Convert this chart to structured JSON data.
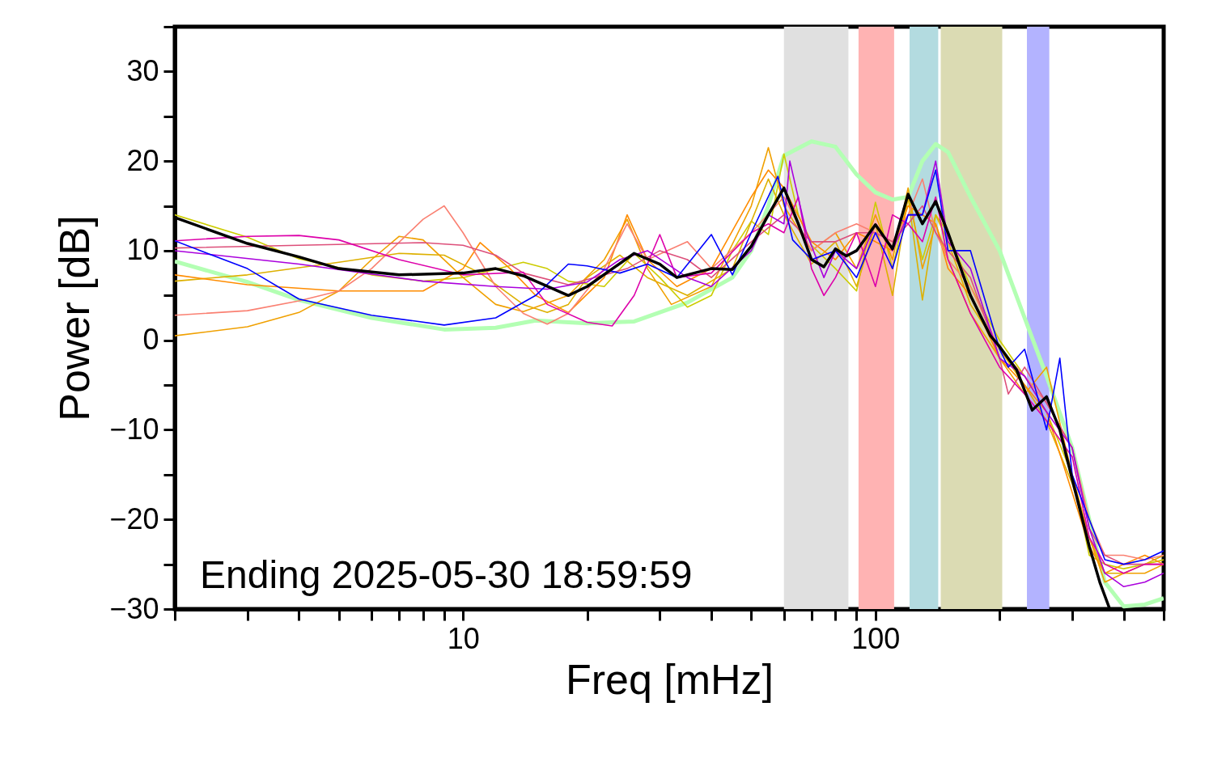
{
  "chart_data": {
    "type": "line",
    "xlabel": "Freq [mHz]",
    "ylabel": "Power [dB]",
    "log": "x",
    "grid": false,
    "line_style": "solid",
    "marker": "none",
    "xlim": [
      2,
      500
    ],
    "ylim": [
      -30,
      35
    ],
    "xticks": [
      {
        "value": 2,
        "label": null
      },
      {
        "value": 3,
        "label": null
      },
      {
        "value": 4,
        "label": null
      },
      {
        "value": 5,
        "label": null
      },
      {
        "value": 6,
        "label": null
      },
      {
        "value": 7,
        "label": null
      },
      {
        "value": 8,
        "label": null
      },
      {
        "value": 9,
        "label": null
      },
      10,
      {
        "value": 20,
        "label": null
      },
      {
        "value": 30,
        "label": null
      },
      {
        "value": 40,
        "label": null
      },
      {
        "value": 50,
        "label": null
      },
      {
        "value": 60,
        "label": null
      },
      {
        "value": 70,
        "label": null
      },
      {
        "value": 80,
        "label": null
      },
      {
        "value": 90,
        "label": null
      },
      100,
      {
        "value": 200,
        "label": null
      },
      {
        "value": 300,
        "label": null
      },
      {
        "value": 400,
        "label": null
      },
      {
        "value": 500,
        "label": null
      }
    ],
    "yticks": [
      -30,
      {
        "value": -25,
        "label": null
      },
      -20,
      {
        "value": -15,
        "label": null
      },
      -10,
      {
        "value": -5,
        "label": null
      },
      0,
      {
        "value": 5,
        "label": null
      },
      10,
      {
        "value": 15,
        "label": null
      },
      20,
      {
        "value": 25,
        "label": null
      },
      30,
      {
        "value": 35,
        "label": null
      }
    ],
    "bands": [
      {
        "axis": "x",
        "from": 60,
        "to": 86,
        "color": "#e0e0e0"
      },
      {
        "axis": "x",
        "from": 91,
        "to": 111,
        "color": "#ffb3b3"
      },
      {
        "axis": "x",
        "from": 121,
        "to": 142,
        "color": "#b3dbe0"
      },
      {
        "axis": "x",
        "from": 144,
        "to": 203,
        "color": "#dbdbb3"
      },
      {
        "axis": "x",
        "from": 233,
        "to": 264,
        "color": "#b3b3ff"
      }
    ],
    "annotations": [
      "Ending 2025-05-30 18:59:59"
    ],
    "series": [
      {
        "color": "#b3ffb3",
        "x": [
          2,
          3,
          4,
          6,
          9,
          12,
          15,
          20,
          26,
          35,
          45,
          50,
          55,
          60,
          70,
          80,
          90,
          100,
          110,
          120,
          130,
          140,
          150,
          170,
          200,
          230,
          260,
          300,
          330,
          360,
          400,
          450,
          500
        ],
        "values": [
          8.8,
          6.5,
          4.5,
          2.5,
          1.2,
          1.4,
          2.2,
          1.9,
          2.1,
          4.2,
          7,
          10,
          15,
          20.6,
          22.2,
          21.6,
          18.5,
          16.5,
          15.7,
          16,
          20,
          21.9,
          21,
          16,
          10,
          2.5,
          -4,
          -12,
          -20,
          -27,
          -29.7,
          -29.5,
          -28.8
        ]
      },
      {
        "color": "#cccc00",
        "x": [
          2,
          3,
          4,
          6,
          8,
          10,
          14,
          16,
          18,
          22,
          26,
          30,
          35,
          40,
          45,
          50,
          55,
          60,
          65,
          70,
          80,
          90,
          100,
          110,
          120,
          130,
          140,
          150,
          170,
          200,
          230,
          260,
          300,
          330,
          360,
          400,
          450,
          500
        ],
        "values": [
          14,
          11.5,
          9.1,
          7.3,
          6.6,
          7,
          8.7,
          8,
          6.6,
          6,
          9.7,
          7,
          3.7,
          5,
          10,
          13.3,
          11.8,
          20.8,
          14,
          10.6,
          8,
          5.5,
          15.4,
          8,
          16,
          9,
          14,
          12,
          6,
          0,
          -4,
          -8,
          -15,
          -24,
          -25,
          -25.5,
          -25,
          -24.5
        ]
      },
      {
        "color": "#ddb000",
        "x": [
          2,
          3,
          5,
          7,
          9,
          11,
          14,
          16,
          18,
          20,
          24,
          28,
          35,
          45,
          55,
          60,
          70,
          80,
          90,
          100,
          110,
          120,
          130,
          140,
          150,
          170,
          200,
          230,
          260,
          300,
          330,
          360,
          400,
          450,
          500
        ],
        "values": [
          6.6,
          7.3,
          8.7,
          9.7,
          9.5,
          7.5,
          4,
          3.1,
          4,
          7,
          9.5,
          7,
          5,
          8,
          18,
          14,
          8.5,
          11,
          6,
          13,
          5,
          16,
          4.5,
          14,
          11,
          4,
          -1,
          -5,
          -9,
          -16,
          -22,
          -26,
          -26,
          -25,
          -24
        ]
      },
      {
        "color": "#f0a000",
        "x": [
          2,
          3,
          4,
          5,
          6,
          7,
          8,
          10,
          12,
          14,
          18,
          22,
          25,
          28,
          32,
          40,
          50,
          55,
          60,
          70,
          80,
          90,
          100,
          110,
          120,
          130,
          140,
          150,
          170,
          200,
          230,
          260,
          300,
          330,
          360,
          400,
          450,
          500
        ],
        "values": [
          0.5,
          1.5,
          3.1,
          5.5,
          9,
          11.6,
          11.2,
          7,
          4,
          3.2,
          5,
          9,
          13.5,
          8,
          4,
          6,
          15,
          21.5,
          15,
          10,
          12,
          8,
          14,
          9,
          17,
          8,
          13,
          9,
          3,
          -2,
          -6,
          -3,
          -15,
          -22,
          -27,
          -26,
          -26,
          -25
        ]
      },
      {
        "color": "#ff8c00",
        "x": [
          2,
          3,
          5,
          8,
          10,
          11,
          13,
          15,
          18,
          22,
          25,
          28,
          33,
          40,
          50,
          55,
          60,
          70,
          80,
          90,
          100,
          110,
          120,
          130,
          140,
          150,
          170,
          200,
          230,
          260,
          300,
          330,
          360,
          400,
          450,
          500
        ],
        "values": [
          7.3,
          6.2,
          5.5,
          5.5,
          8,
          10.9,
          8,
          5,
          3.1,
          7,
          14,
          9,
          6,
          8,
          16,
          19,
          17,
          11,
          9,
          12,
          11,
          10,
          15,
          14,
          13,
          8,
          5,
          -2,
          -5,
          -8,
          -17,
          -23,
          -26,
          -25,
          -24,
          -25
        ]
      },
      {
        "color": "#fa8072",
        "x": [
          2,
          3,
          4,
          5,
          6,
          8,
          9,
          10,
          12,
          14,
          16,
          18,
          22,
          25,
          28,
          35,
          40,
          50,
          60,
          70,
          80,
          90,
          100,
          110,
          120,
          130,
          140,
          150,
          170,
          200,
          230,
          260,
          300,
          330,
          360,
          400,
          450,
          500
        ],
        "values": [
          2.8,
          3.3,
          4.4,
          5.5,
          8,
          13.5,
          15,
          12,
          6,
          3,
          1.8,
          3,
          8,
          13,
          9,
          11,
          8,
          12,
          16,
          10,
          12,
          13,
          12,
          11,
          14,
          18,
          12,
          9,
          6,
          -1,
          -4,
          -7,
          -12,
          -20,
          -24,
          -24,
          -24.5,
          -24
        ]
      },
      {
        "color": "#dd4f7a",
        "x": [
          2,
          4,
          8,
          10,
          12,
          14,
          18,
          25,
          30,
          35,
          40,
          50,
          60,
          70,
          80,
          90,
          100,
          110,
          120,
          130,
          140,
          150,
          170,
          200,
          210,
          230,
          260,
          300,
          330,
          360,
          400,
          450,
          500
        ],
        "values": [
          10.3,
          10.6,
          10.9,
          10.6,
          9.5,
          7.5,
          6.2,
          8,
          10,
          9,
          7,
          11,
          14,
          11,
          11,
          12,
          12,
          11,
          13,
          15,
          12,
          10,
          7,
          -2,
          -6,
          -3,
          -7,
          -12,
          -21,
          -24,
          -25,
          -25,
          -25
        ]
      },
      {
        "color": "#dd00aa",
        "x": [
          2,
          3,
          4,
          5,
          7,
          10,
          14,
          16,
          20,
          23,
          26,
          30,
          33,
          40,
          50,
          55,
          60,
          65,
          70,
          75,
          80,
          90,
          100,
          110,
          120,
          130,
          140,
          150,
          170,
          200,
          230,
          260,
          300,
          330,
          360,
          400,
          450,
          500
        ],
        "values": [
          11.1,
          11.6,
          11.7,
          11.2,
          9,
          7.3,
          7.6,
          4,
          2,
          1.6,
          5,
          11.8,
          7,
          7.5,
          12,
          13,
          12,
          16,
          8,
          5,
          7,
          12,
          6,
          14,
          13,
          11,
          16,
          9,
          3,
          -3,
          -6,
          -9,
          -13,
          -22,
          -25,
          -26,
          -25,
          -25
        ]
      },
      {
        "color": "#aa00dd",
        "x": [
          2,
          4,
          8,
          12,
          16,
          20,
          24,
          28,
          35,
          40,
          50,
          55,
          60,
          62,
          68,
          75,
          80,
          90,
          100,
          110,
          120,
          130,
          140,
          150,
          170,
          200,
          230,
          260,
          300,
          330,
          360,
          400,
          450,
          500
        ],
        "values": [
          10,
          8.5,
          6.6,
          6,
          5.7,
          6.5,
          9,
          10,
          7,
          6,
          10,
          14,
          13,
          20,
          12,
          7,
          10,
          8,
          13,
          10,
          14,
          14,
          20,
          11,
          8,
          -2,
          -4,
          -8,
          -12,
          -21,
          -26,
          -27.5,
          -27,
          -26
        ]
      },
      {
        "color": "#0000ff",
        "x": [
          2,
          3,
          4,
          6,
          9,
          12,
          15,
          18,
          20,
          24,
          28,
          33,
          40,
          45,
          50,
          58,
          63,
          70,
          80,
          90,
          100,
          110,
          120,
          130,
          140,
          150,
          170,
          200,
          210,
          230,
          260,
          280,
          300,
          330,
          360,
          400,
          450,
          500
        ],
        "values": [
          11.1,
          8,
          4.6,
          2.8,
          1.7,
          2.5,
          5,
          8.5,
          8.3,
          7.5,
          8.5,
          7,
          11.8,
          7.3,
          12,
          18.3,
          11.2,
          9,
          10,
          7,
          12,
          8,
          14,
          14,
          19,
          10,
          10,
          -1,
          -3,
          -1,
          -10,
          -2,
          -15,
          -20,
          -24.5,
          -25,
          -24.5,
          -23.5
        ]
      },
      {
        "color": "#000000",
        "x": [
          2,
          3,
          4,
          5,
          7,
          10,
          12,
          14,
          18,
          20,
          26,
          30,
          33,
          40,
          45,
          50,
          55,
          60,
          65,
          70,
          75,
          80,
          85,
          90,
          100,
          110,
          120,
          130,
          140,
          150,
          170,
          190,
          200,
          220,
          240,
          260,
          280,
          300,
          330,
          350,
          370
        ],
        "values": [
          13.7,
          10.8,
          9.3,
          8,
          7.3,
          7.5,
          8,
          7.2,
          5,
          6,
          9.7,
          8.5,
          7,
          8,
          7.9,
          10.5,
          14,
          17,
          13,
          9,
          8.2,
          10.2,
          9.4,
          10,
          12.9,
          10.2,
          16.3,
          13,
          15.5,
          12,
          5,
          0.5,
          -0.7,
          -3.3,
          -7.8,
          -6.3,
          -10,
          -15.5,
          -23,
          -27,
          -30
        ]
      }
    ]
  }
}
